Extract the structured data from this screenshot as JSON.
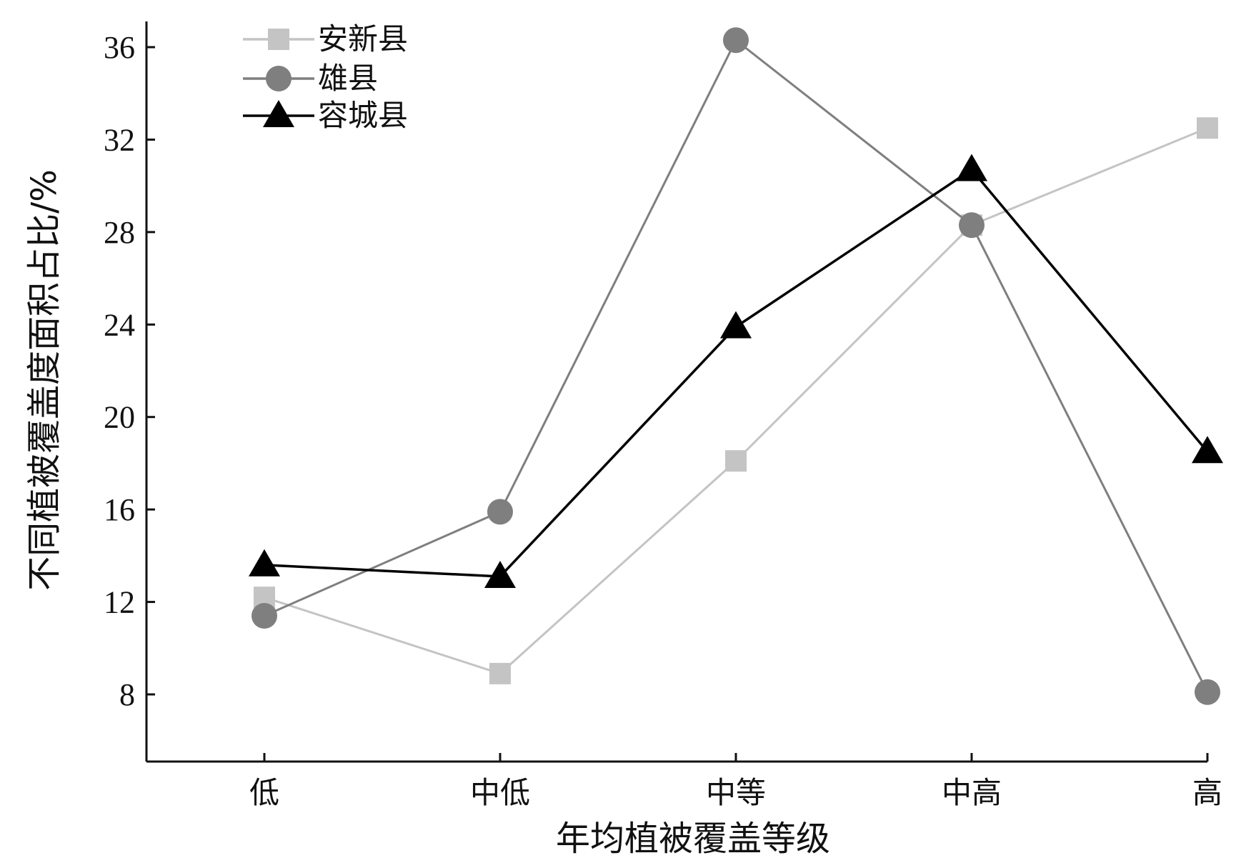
{
  "chart_data": {
    "type": "line",
    "categories": [
      "低",
      "中低",
      "中等",
      "中高",
      "高"
    ],
    "xlabel": "年均植被覆盖等级",
    "ylabel": "不同植被覆盖度面积占比/%",
    "ylim": [
      5,
      37
    ],
    "yticks": [
      8,
      12,
      16,
      20,
      24,
      28,
      32,
      36
    ],
    "grid": false,
    "legend_position": "top-left",
    "series": [
      {
        "name": "安新县",
        "marker": "square",
        "color": "#c4c4c4",
        "values": [
          12.2,
          8.9,
          18.1,
          28.3,
          32.5
        ]
      },
      {
        "name": "雄县",
        "marker": "circle",
        "color": "#7f7f7f",
        "values": [
          11.4,
          15.9,
          36.3,
          28.3,
          8.1
        ]
      },
      {
        "name": "容城县",
        "marker": "triangle",
        "color": "#000000",
        "values": [
          13.6,
          13.1,
          23.9,
          30.7,
          18.5
        ]
      }
    ]
  }
}
